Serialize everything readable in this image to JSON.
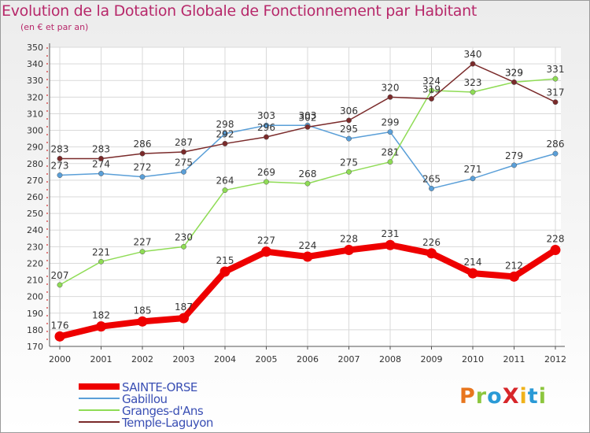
{
  "header": {
    "title": "Evolution de la Dotation Globale de Fonctionnement par Habitant",
    "subtitle": "(en € et par an)"
  },
  "logo": {
    "text": "ProXiti",
    "letters": [
      {
        "ch": "P",
        "color": "#e8761e"
      },
      {
        "ch": "r",
        "color": "#8cc63e"
      },
      {
        "ch": "o",
        "color": "#2a9ad6"
      },
      {
        "ch": "X",
        "color": "#d7262a"
      },
      {
        "ch": "i",
        "color": "#f0b21a"
      },
      {
        "ch": "t",
        "color": "#2a9ad6"
      },
      {
        "ch": "i",
        "color": "#8cc63e"
      }
    ]
  },
  "chart_data": {
    "type": "line",
    "title": "Evolution de la Dotation Globale de Fonctionnement par Habitant",
    "subtitle": "(en € et par an)",
    "x": [
      "2000",
      "2001",
      "2002",
      "2003",
      "2004",
      "2005",
      "2006",
      "2007",
      "2008",
      "2009",
      "2010",
      "2011",
      "2012"
    ],
    "ylim": [
      170,
      350
    ],
    "yticks": [
      170,
      180,
      190,
      200,
      210,
      220,
      230,
      240,
      250,
      260,
      270,
      280,
      290,
      300,
      310,
      320,
      330,
      340,
      350
    ],
    "grid": true,
    "legend": "bottom-left",
    "series": [
      {
        "name": "SAINTE-ORSE",
        "color": "#ee0000",
        "width": "thick",
        "values": [
          176,
          182,
          185,
          187,
          215,
          227,
          224,
          228,
          231,
          226,
          214,
          212,
          228
        ]
      },
      {
        "name": "Gabillou",
        "color": "#5a9fd8",
        "width": "thin",
        "values": [
          273,
          274,
          272,
          275,
          298,
          303,
          303,
          295,
          299,
          265,
          271,
          279,
          286
        ]
      },
      {
        "name": "Granges-d'Ans",
        "color": "#8fdc55",
        "width": "thin",
        "values": [
          207,
          221,
          227,
          230,
          264,
          269,
          268,
          275,
          281,
          324,
          323,
          329,
          331
        ]
      },
      {
        "name": "Temple-Laguyon",
        "color": "#7a2a2a",
        "width": "thin",
        "values": [
          283,
          283,
          286,
          287,
          292,
          296,
          302,
          306,
          320,
          319,
          340,
          329,
          317
        ]
      }
    ]
  }
}
